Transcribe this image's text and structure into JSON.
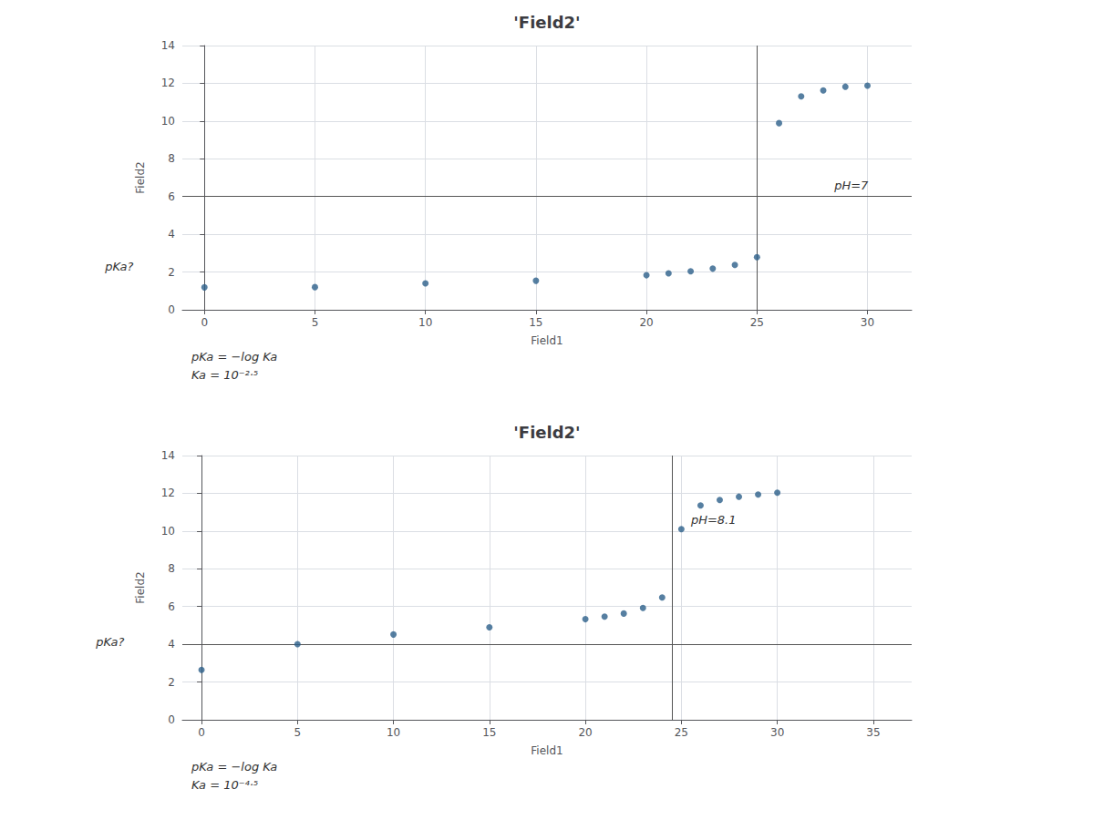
{
  "chart_data": [
    {
      "type": "scatter",
      "title": "'Field2'",
      "xlabel": "Field1",
      "ylabel": "Field2",
      "x": [
        0,
        5,
        10,
        15,
        20,
        21,
        22,
        23,
        24,
        25,
        26,
        27,
        28,
        29,
        30
      ],
      "values": [
        1.19,
        1.2,
        1.4,
        1.54,
        1.83,
        1.93,
        2.04,
        2.18,
        2.38,
        2.79,
        9.89,
        11.31,
        11.62,
        11.82,
        11.88
      ],
      "xlim": [
        -1,
        32
      ],
      "ylim": [
        0,
        14
      ],
      "xticks": [
        0,
        5,
        10,
        15,
        20,
        25,
        30
      ],
      "yticks": [
        0,
        2,
        4,
        6,
        8,
        10,
        12,
        14
      ],
      "grid": true,
      "color": "#2c5f8a",
      "reference_lines": [
        {
          "axis": "y",
          "value": 6.0,
          "color": "#555555"
        },
        {
          "axis": "x",
          "value": 25.0,
          "color": "#555555"
        }
      ],
      "annotations": [
        {
          "text": "pH=7",
          "x": 28.5,
          "y": 6.3
        },
        {
          "text": "pKa?",
          "x": -4.5,
          "y": 2.0
        },
        {
          "text": "pKa = −log Ka"
        },
        {
          "text": "Ka = 10⁻²·⁵"
        }
      ]
    },
    {
      "type": "scatter",
      "title": "'Field2'",
      "xlabel": "Field1",
      "ylabel": "Field2",
      "x": [
        0,
        5,
        10,
        15,
        20,
        21,
        22,
        23,
        24,
        25,
        26,
        27,
        28,
        29,
        30
      ],
      "values": [
        2.64,
        4.01,
        4.52,
        4.9,
        5.33,
        5.47,
        5.63,
        5.93,
        6.48,
        10.1,
        11.36,
        11.65,
        11.82,
        11.94,
        12.03
      ],
      "xlim": [
        -1,
        37
      ],
      "ylim": [
        0,
        14
      ],
      "xticks": [
        0,
        5,
        10,
        15,
        20,
        25,
        30,
        35
      ],
      "yticks": [
        0,
        2,
        4,
        6,
        8,
        10,
        12,
        14
      ],
      "grid": true,
      "color": "#2c5f8a",
      "reference_lines": [
        {
          "axis": "y",
          "value": 4.0,
          "color": "#555555"
        },
        {
          "axis": "x",
          "value": 24.5,
          "color": "#555555"
        }
      ],
      "annotations": [
        {
          "text": "pH=8.1",
          "x": 25.5,
          "y": 10.3
        },
        {
          "text": "pKa?",
          "x": -5.5,
          "y": 3.8
        },
        {
          "text": "pKa = −log Ka"
        },
        {
          "text": "Ka = 10⁻⁴·⁵"
        }
      ]
    }
  ]
}
